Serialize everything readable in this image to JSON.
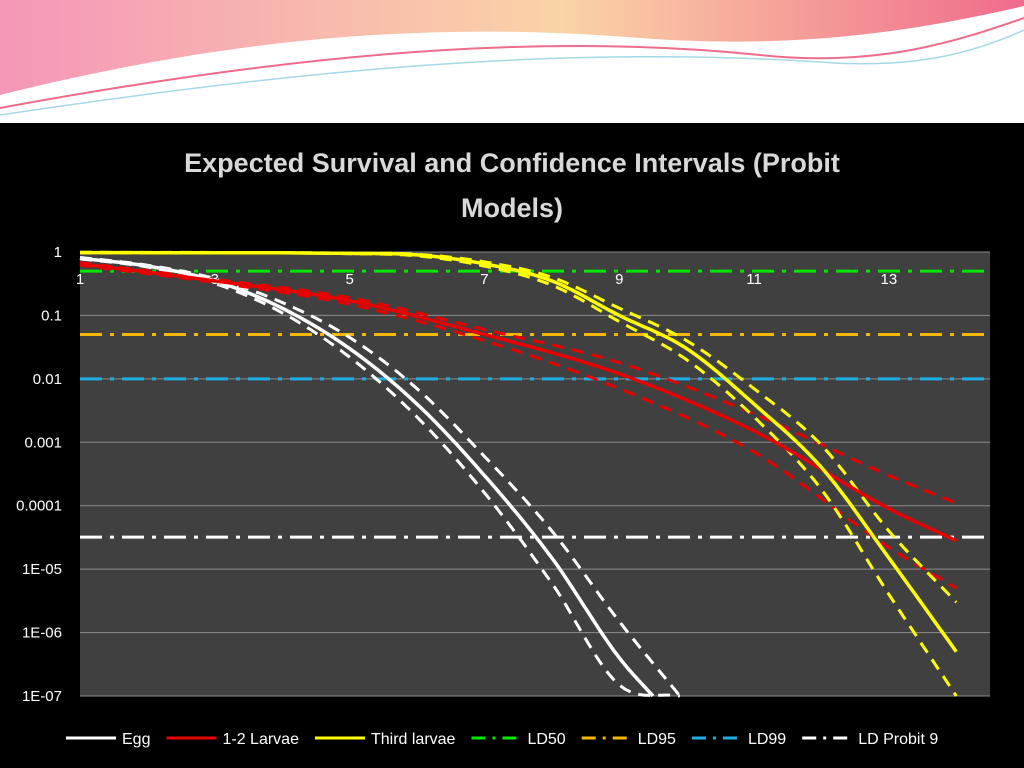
{
  "slide": {
    "header_colors": [
      "#f497b8",
      "#fbd3a6",
      "#ef6b8c",
      "#a6d9e6"
    ]
  },
  "chart_data": {
    "type": "line",
    "title_lines": [
      "Expected Survival and Confidence Intervals (Probit",
      "Models)"
    ],
    "xlabel": "",
    "ylabel": "",
    "x_scale": "linear",
    "y_scale": "log",
    "xlim": [
      1,
      14.5
    ],
    "ylim": [
      1e-07,
      1
    ],
    "x_ticks": [
      "1",
      "3",
      "5",
      "7",
      "9",
      "11",
      "13"
    ],
    "y_ticks": [
      "1",
      "0.1",
      "0.01",
      "0.001",
      "0.0001",
      "1E-05",
      "1E-06",
      "1E-07"
    ],
    "grid": true,
    "legend_position": "bottom",
    "plot_background": "#404040",
    "series": [
      {
        "name": "Egg",
        "color": "#ffffff",
        "style": "solid",
        "x": [
          1,
          2,
          3,
          4,
          5,
          6,
          7,
          8,
          9,
          9.5
        ],
        "y": [
          0.8,
          0.6,
          0.35,
          0.13,
          0.03,
          0.004,
          0.0003,
          1.5e-05,
          4e-07,
          1e-07
        ],
        "ci": {
          "x": [
            1,
            2,
            3,
            4,
            5,
            6,
            7,
            8,
            9,
            9.9
          ],
          "lower": [
            0.78,
            0.58,
            0.32,
            0.11,
            0.022,
            0.0025,
            0.00016,
            6e-06,
            1.5e-07,
            1e-07
          ],
          "upper": [
            0.82,
            0.62,
            0.38,
            0.16,
            0.045,
            0.007,
            0.0006,
            4e-05,
            1.5e-06,
            1e-07
          ]
        }
      },
      {
        "name": "1-2 Larvae",
        "color": "#e60000",
        "style": "solid",
        "x": [
          1,
          3,
          5,
          7,
          9,
          11,
          13,
          14
        ],
        "y": [
          0.65,
          0.35,
          0.17,
          0.05,
          0.012,
          0.0015,
          9e-05,
          2.8e-05
        ],
        "ci": {
          "x": [
            1,
            3,
            5,
            7,
            9,
            11,
            13,
            14
          ],
          "lower": [
            0.62,
            0.33,
            0.15,
            0.04,
            0.007,
            0.0007,
            2.2e-05,
            5e-06
          ],
          "upper": [
            0.68,
            0.37,
            0.19,
            0.06,
            0.018,
            0.0028,
            0.0003,
            0.00011
          ]
        }
      },
      {
        "name": "Third larvae",
        "color": "#ffff00",
        "style": "solid",
        "x": [
          1,
          5,
          6,
          7,
          8,
          9,
          10,
          11,
          12,
          13,
          14
        ],
        "y": [
          0.98,
          0.95,
          0.9,
          0.65,
          0.35,
          0.1,
          0.03,
          0.004,
          0.0004,
          1.5e-05,
          5e-07
        ],
        "ci": {
          "x": [
            1,
            5,
            6,
            7,
            8,
            9,
            10,
            11,
            12,
            13,
            14
          ],
          "lower": [
            0.97,
            0.94,
            0.87,
            0.6,
            0.3,
            0.08,
            0.02,
            0.0025,
            0.00018,
            4e-06,
            1e-07
          ],
          "upper": [
            0.99,
            0.96,
            0.92,
            0.7,
            0.4,
            0.13,
            0.04,
            0.007,
            0.0009,
            4e-05,
            3e-06
          ]
        }
      },
      {
        "name": "LD50",
        "color": "#00e600",
        "style": "dash-dot",
        "value": 0.5
      },
      {
        "name": "LD95",
        "color": "#f5b800",
        "style": "dash-dot",
        "value": 0.05
      },
      {
        "name": "LD99",
        "color": "#1eaee6",
        "style": "dash-dot",
        "value": 0.01
      },
      {
        "name": "LD Probit 9",
        "color": "#ffffff",
        "style": "dash-dot",
        "value": 3.2e-05
      }
    ]
  }
}
